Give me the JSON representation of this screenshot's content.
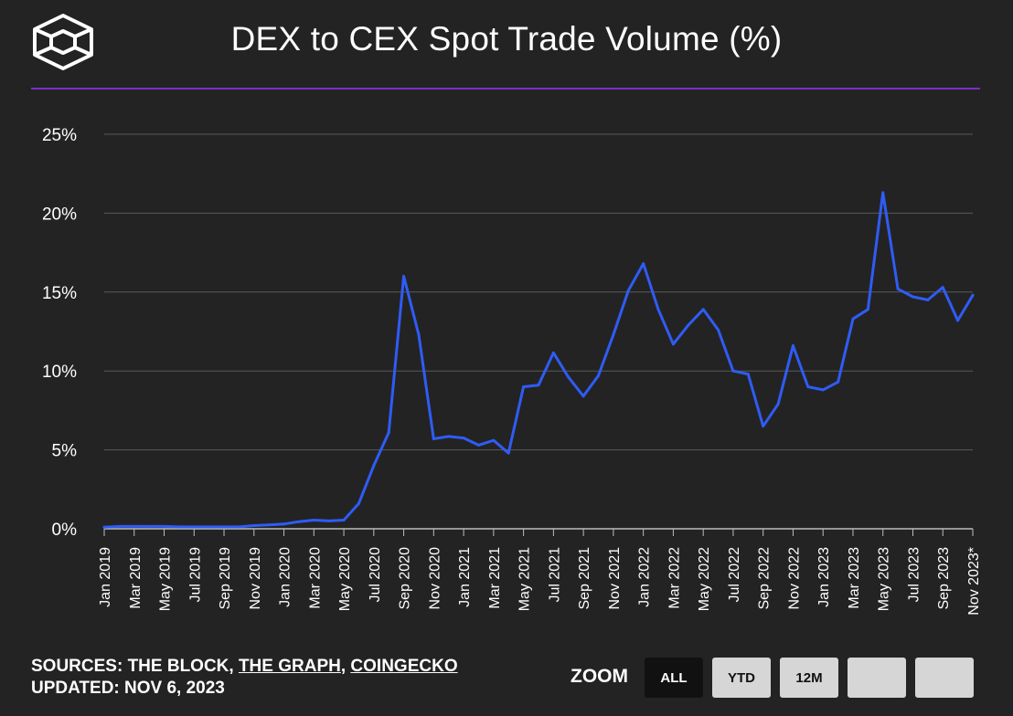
{
  "header": {
    "title": "DEX to CEX Spot Trade Volume (%)",
    "accent_color": "#7a2fc7"
  },
  "chart_data": {
    "type": "line",
    "title": "DEX to CEX Spot Trade Volume (%)",
    "xlabel": "",
    "ylabel": "",
    "ylim": [
      0,
      25
    ],
    "yticks": [
      0,
      5,
      10,
      15,
      20,
      25
    ],
    "ytick_labels": [
      "0%",
      "5%",
      "10%",
      "15%",
      "20%",
      "25%"
    ],
    "grid": true,
    "line_color": "#2f5cf5",
    "x": [
      "Jan 2019",
      "Feb 2019",
      "Mar 2019",
      "Apr 2019",
      "May 2019",
      "Jun 2019",
      "Jul 2019",
      "Aug 2019",
      "Sep 2019",
      "Oct 2019",
      "Nov 2019",
      "Dec 2019",
      "Jan 2020",
      "Feb 2020",
      "Mar 2020",
      "Apr 2020",
      "May 2020",
      "Jun 2020",
      "Jul 2020",
      "Aug 2020",
      "Sep 2020",
      "Oct 2020",
      "Nov 2020",
      "Dec 2020",
      "Jan 2021",
      "Feb 2021",
      "Mar 2021",
      "Apr 2021",
      "May 2021",
      "Jun 2021",
      "Jul 2021",
      "Aug 2021",
      "Sep 2021",
      "Oct 2021",
      "Nov 2021",
      "Dec 2021",
      "Jan 2022",
      "Feb 2022",
      "Mar 2022",
      "Apr 2022",
      "May 2022",
      "Jun 2022",
      "Jul 2022",
      "Aug 2022",
      "Sep 2022",
      "Oct 2022",
      "Nov 2022",
      "Dec 2022",
      "Jan 2023",
      "Feb 2023",
      "Mar 2023",
      "Apr 2023",
      "May 2023",
      "Jun 2023",
      "Jul 2023",
      "Aug 2023",
      "Sep 2023",
      "Oct 2023",
      "Nov 2023*"
    ],
    "tick_labels": [
      "Jan 2019",
      "Mar 2019",
      "May 2019",
      "Jul 2019",
      "Sep 2019",
      "Nov 2019",
      "Jan 2020",
      "Mar 2020",
      "May 2020",
      "Jul 2020",
      "Sep 2020",
      "Nov 2020",
      "Jan 2021",
      "Mar 2021",
      "May 2021",
      "Jul 2021",
      "Sep 2021",
      "Nov 2021",
      "Jan 2022",
      "Mar 2022",
      "May 2022",
      "Jul 2022",
      "Sep 2022",
      "Nov 2022",
      "Jan 2023",
      "Mar 2023",
      "May 2023",
      "Jul 2023",
      "Sep 2023",
      "Nov 2023*"
    ],
    "series": [
      {
        "name": "DEX to CEX Spot Trade Volume (%)",
        "values": [
          0.1,
          0.15,
          0.15,
          0.15,
          0.15,
          0.12,
          0.12,
          0.12,
          0.12,
          0.12,
          0.2,
          0.25,
          0.3,
          0.45,
          0.55,
          0.5,
          0.55,
          1.6,
          4.0,
          6.1,
          16.0,
          12.3,
          5.7,
          5.85,
          5.75,
          5.3,
          5.6,
          4.8,
          9.0,
          9.1,
          11.15,
          9.6,
          8.4,
          9.7,
          12.3,
          15.1,
          16.8,
          13.9,
          11.7,
          12.9,
          13.9,
          12.6,
          10.0,
          9.8,
          6.5,
          7.9,
          11.6,
          9.0,
          8.8,
          9.3,
          13.3,
          13.9,
          21.3,
          15.2,
          14.7,
          14.5,
          15.3,
          13.2,
          14.8
        ]
      }
    ]
  },
  "footer": {
    "sources_prefix": "SOURCES: THE BLOCK, ",
    "source_link_1": "THE GRAPH",
    "separator": ", ",
    "source_link_2": "COINGECKO",
    "updated": "UPDATED: NOV 6, 2023"
  },
  "zoom": {
    "label": "ZOOM",
    "buttons": [
      "ALL",
      "YTD",
      "12M",
      "",
      ""
    ],
    "active": "ALL"
  }
}
